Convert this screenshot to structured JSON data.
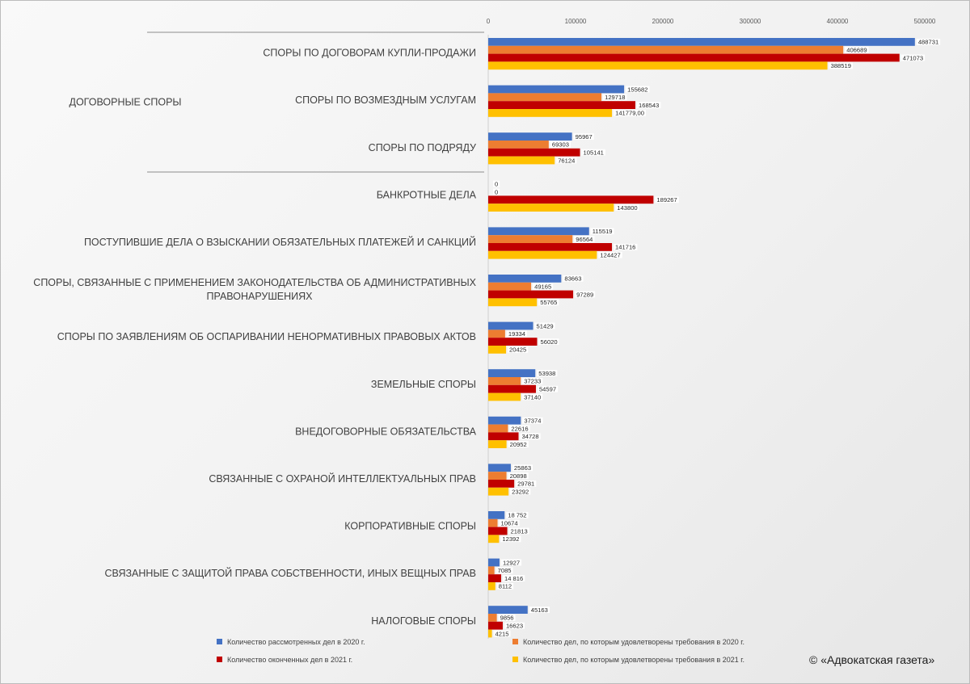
{
  "copyright": "© «Адвокатская газета»",
  "chart_data": {
    "type": "bar",
    "orientation": "horizontal",
    "xlim": [
      0,
      500000
    ],
    "x_ticks": [
      0,
      100000,
      200000,
      300000,
      400000,
      500000
    ],
    "x_tick_labels": [
      "0",
      "100000",
      "200000",
      "300000",
      "400000",
      "500000"
    ],
    "group_label": "ДОГОВОРНЫЕ СПОРЫ",
    "categories": [
      [
        "СПОРЫ ПО ДОГОВОРАМ КУПЛИ-ПРОДАЖИ"
      ],
      [
        "СПОРЫ ПО ВОЗМЕЗДНЫМ УСЛУГАМ"
      ],
      [
        "СПОРЫ ПО ПОДРЯДУ"
      ],
      [
        "БАНКРОТНЫЕ ДЕЛА"
      ],
      [
        "ПОСТУПИВШИЕ ДЕЛА О ВЗЫСКАНИИ ОБЯЗАТЕЛЬНЫХ ПЛАТЕЖЕЙ И САНКЦИЙ"
      ],
      [
        "СПОРЫ, СВЯЗАННЫЕ С ПРИМЕНЕНИЕМ ЗАКОНОДАТЕЛЬСТВА ОБ АДМИНИСТРАТИВНЫХ",
        "ПРАВОНАРУШЕНИЯХ"
      ],
      [
        "СПОРЫ ПО ЗАЯВЛЕНИЯМ ОБ ОСПАРИВАНИИ НЕНОРМАТИВНЫХ ПРАВОВЫХ АКТОВ"
      ],
      [
        "ЗЕМЕЛЬНЫЕ СПОРЫ"
      ],
      [
        "ВНЕДОГОВОРНЫЕ ОБЯЗАТЕЛЬСТВА"
      ],
      [
        "СВЯЗАННЫЕ  С ОХРАНОЙ ИНТЕЛЛЕКТУАЛЬНЫХ ПРАВ"
      ],
      [
        "КОРПОРАТИВНЫЕ СПОРЫ"
      ],
      [
        "СВЯЗАННЫЕ С ЗАЩИТОЙ ПРАВА СОБСТВЕННОСТИ, ИНЫХ ВЕЩНЫХ ПРАВ"
      ],
      [
        "НАЛОГОВЫЕ СПОРЫ"
      ]
    ],
    "series": [
      {
        "name": "Количество рассмотренных дел в 2020 г.",
        "color": "#4472c4",
        "values": [
          488731,
          155682,
          95967,
          0,
          115519,
          83663,
          51429,
          53938,
          37374,
          25863,
          18752,
          12927,
          45163
        ],
        "labels": [
          "488731",
          "155682",
          "95967",
          "0",
          "115519",
          "83663",
          "51429",
          "53938",
          "37374",
          "25863",
          "18 752",
          "12927",
          "45163"
        ]
      },
      {
        "name": "Количество дел, по которым удовлетворены требования в 2020 г.",
        "color": "#ed7d31",
        "values": [
          406689,
          129718,
          69303,
          0,
          96564,
          49165,
          19334,
          37233,
          22616,
          20898,
          10674,
          7085,
          9856
        ],
        "labels": [
          "406689",
          "129718",
          "69303",
          "0",
          "96564",
          "49165",
          "19334",
          "37233",
          "22616",
          "20898",
          "10674",
          "7085",
          "9856"
        ]
      },
      {
        "name": "Количество оконченных дел в 2021 г.",
        "color": "#c00000",
        "values": [
          471073,
          168543,
          105141,
          189267,
          141716,
          97289,
          56020,
          54597,
          34728,
          29781,
          21813,
          14816,
          16623
        ],
        "labels": [
          "471073",
          "168543",
          "105141",
          "189267",
          "141716",
          "97289",
          "56020",
          "54597",
          "34728",
          "29781",
          "21813",
          "14 816",
          "16623"
        ]
      },
      {
        "name": "Количество дел, по которым удовлетворены требования в 2021 г.",
        "color": "#ffc000",
        "values": [
          388519,
          141779,
          76124,
          143800,
          124427,
          55765,
          20425,
          37140,
          20952,
          23292,
          12392,
          8112,
          4215
        ],
        "labels": [
          "388519",
          "141779,00",
          "76124",
          "143800",
          "124427",
          "55765",
          "20425",
          "37140",
          "20952",
          "23292",
          "12392",
          "8112",
          "4215"
        ]
      }
    ],
    "legend_position": "bottom",
    "grid": false
  }
}
